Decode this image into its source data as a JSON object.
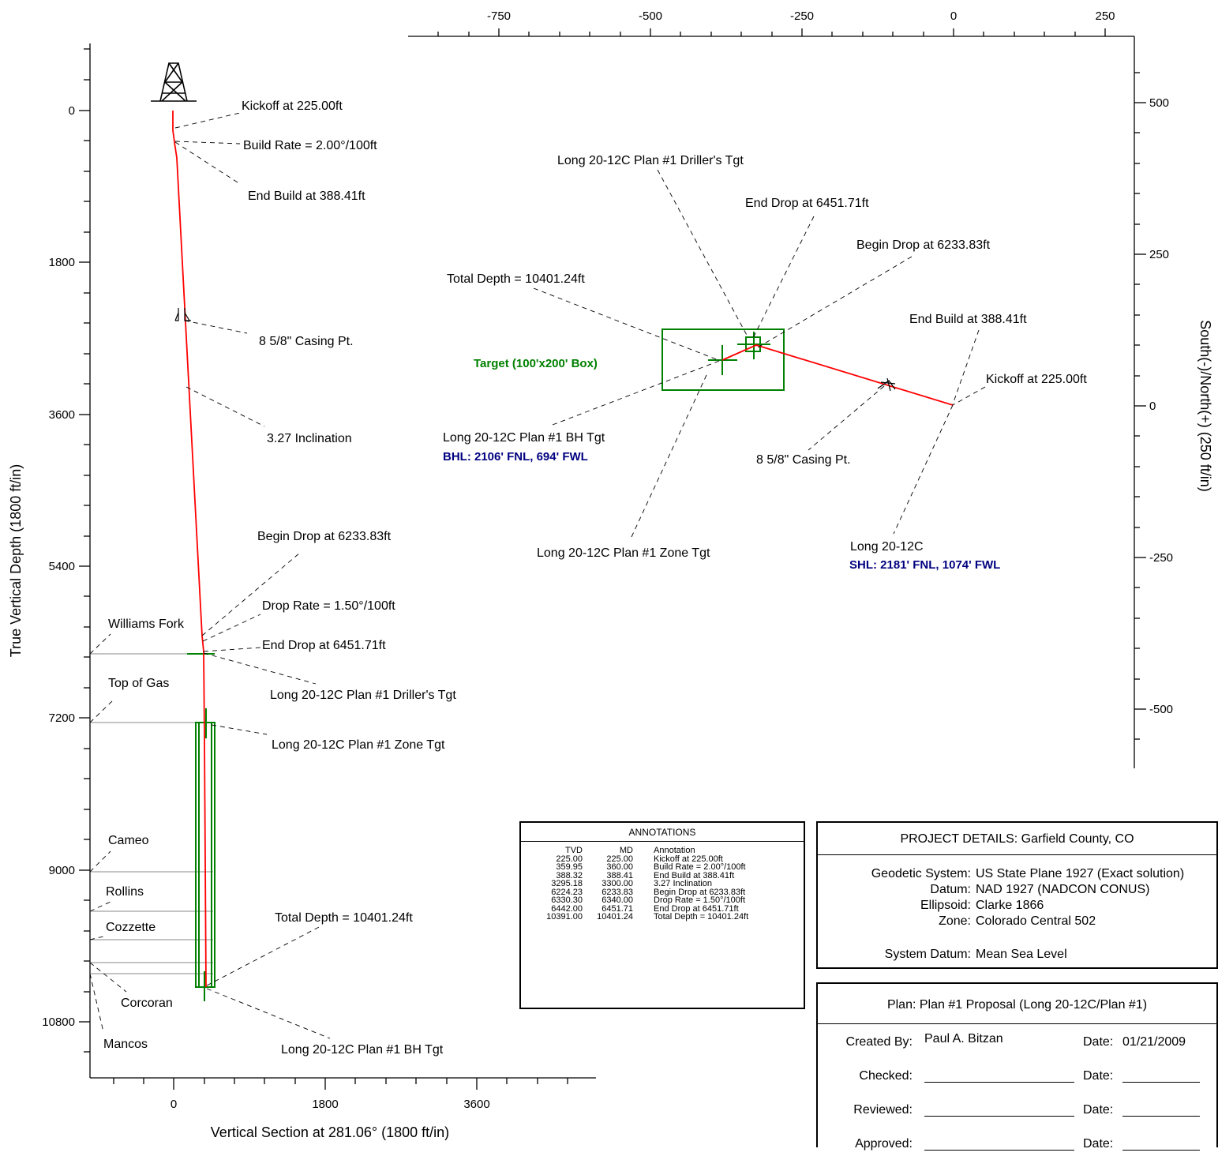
{
  "left_plot": {
    "ylabel": "True Vertical Depth (1800 ft/in)",
    "xlabel": "Vertical Section at 281.06° (1800 ft/in)",
    "y_ticks": [
      "0",
      "1800",
      "3600",
      "5400",
      "7200",
      "9000",
      "10800"
    ],
    "x_ticks": [
      "0",
      "1800",
      "3600"
    ],
    "annotations": {
      "kickoff": "Kickoff at 225.00ft",
      "build_rate": "Build Rate = 2.00°/100ft",
      "end_build": "End Build at 388.41ft",
      "casing": "8 5/8\" Casing Pt.",
      "inclination": "3.27 Inclination",
      "begin_drop": "Begin Drop at 6233.83ft",
      "drop_rate": "Drop Rate = 1.50°/100ft",
      "end_drop": "End Drop at 6451.71ft",
      "drillers_tgt": "Long 20-12C Plan #1 Driller's Tgt",
      "zone_tgt": "Long 20-12C Plan #1 Zone Tgt",
      "total_depth": "Total Depth = 10401.24ft",
      "bh_tgt": "Long 20-12C Plan #1 BH Tgt"
    },
    "formations": [
      "Williams Fork",
      "Top of Gas",
      "Cameo",
      "Rollins",
      "Cozzette",
      "Corcoran",
      "Mancos"
    ]
  },
  "right_plot": {
    "ylabel": "South(-)/North(+) (250 ft/in)",
    "x_ticks": [
      "-750",
      "-500",
      "-250",
      "0",
      "250"
    ],
    "y_ticks": [
      "500",
      "250",
      "0",
      "-250",
      "-500"
    ],
    "annotations": {
      "drillers_tgt": "Long 20-12C Plan #1 Driller's Tgt",
      "end_drop": "End Drop at 6451.71ft",
      "begin_drop": "Begin Drop at 6233.83ft",
      "total_depth": "Total Depth = 10401.24ft",
      "end_build": "End Build at 388.41ft",
      "target_box": "Target (100'x200' Box)",
      "kickoff": "Kickoff at 225.00ft",
      "bh_tgt": "Long 20-12C Plan #1 BH Tgt",
      "bhl": "BHL: 2106' FNL, 694' FWL",
      "casing": "8 5/8\" Casing Pt.",
      "zone_tgt": "Long 20-12C Plan #1 Zone Tgt",
      "well": "Long 20-12C",
      "shl": "SHL: 2181' FNL, 1074' FWL"
    }
  },
  "annotations_table": {
    "title": "ANNOTATIONS",
    "headers": [
      "TVD",
      "MD",
      "Annotation"
    ],
    "rows": [
      [
        "225.00",
        "225.00",
        "Kickoff at 225.00ft"
      ],
      [
        "359.95",
        "360.00",
        "Build Rate = 2.00°/100ft"
      ],
      [
        "388.32",
        "388.41",
        "End Build at 388.41ft"
      ],
      [
        "3295.18",
        "3300.00",
        "3.27 Inclination"
      ],
      [
        "6224.23",
        "6233.83",
        "Begin Drop at 6233.83ft"
      ],
      [
        "6330.30",
        "6340.00",
        "Drop Rate = 1.50°/100ft"
      ],
      [
        "6442.00",
        "6451.71",
        "End Drop at 6451.71ft"
      ],
      [
        "10391.00",
        "10401.24",
        "Total Depth = 10401.24ft"
      ]
    ]
  },
  "project": {
    "title": "PROJECT DETAILS:  Garfield County, CO",
    "geodetic_label": "Geodetic System:",
    "geodetic": "US State Plane 1927 (Exact solution)",
    "datum_label": "Datum:",
    "datum": "NAD 1927 (NADCON CONUS)",
    "ellipsoid_label": "Ellipsoid:",
    "ellipsoid": "Clarke 1866",
    "zone_label": "Zone:",
    "zone": "Colorado Central 502",
    "system_datum_label": "System Datum:",
    "system_datum": "Mean Sea Level"
  },
  "plan": {
    "title": "Plan: Plan #1 Proposal (Long 20-12C/Plan #1)",
    "created_label": "Created By:",
    "created_by": "Paul A. Bitzan",
    "date_label": "Date:",
    "created_date": "01/21/2009",
    "checked_label": "Checked:",
    "reviewed_label": "Reviewed:",
    "approved_label": "Approved:"
  },
  "colors": {
    "wellpath": "#ff0000",
    "target": "#008000",
    "label_blue": "#000080"
  }
}
